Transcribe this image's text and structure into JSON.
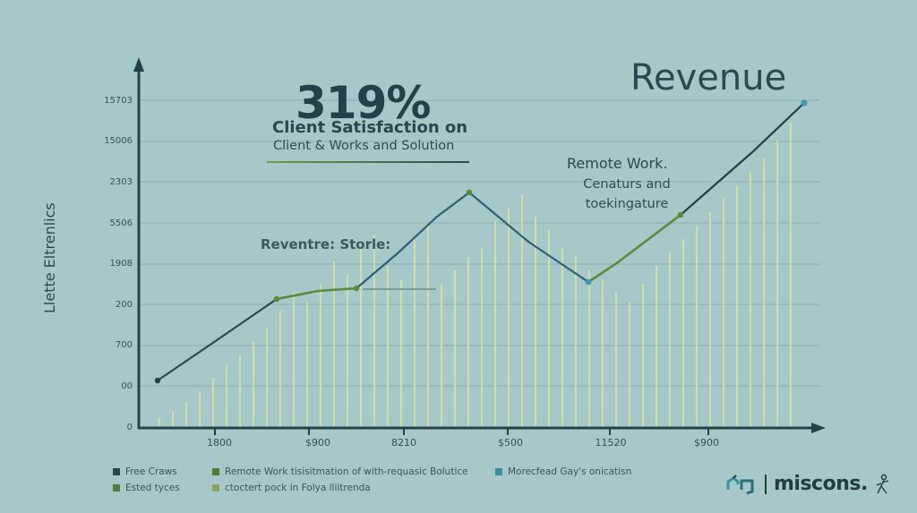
{
  "colors": {
    "background": "#a6c8c8",
    "axis": "#24414a",
    "gridline": "#8fb3b3",
    "line_dark": "#2c4a55",
    "line_teal": "#2e5f72",
    "line_green": "#5a8a3a",
    "bars": "#d7e6a8",
    "point_teal": "#3a9cb0"
  },
  "header": {
    "big_stat": "319%",
    "stat_title": "Client Satisfaction  on",
    "stat_subtitle": "Client & Works and Solution",
    "revenue_title": "Revenue"
  },
  "annotations": {
    "remote_title": "Remote Work.",
    "remote_line1": "Cenaturs and",
    "remote_line2": "toekingature",
    "stories_label": "Reventre: Storle:"
  },
  "legend": [
    {
      "label": "Free Craws",
      "color": "#2a454c"
    },
    {
      "label": "Remote Work tisisitmation of with-requasic Bolutice",
      "color": "#4e7a3a"
    },
    {
      "label": "Morecfead Gay's onicatisn",
      "color": "#3a8f9e"
    },
    {
      "label": "Ested tyces",
      "color": "#4e7a3a"
    },
    {
      "label": "ctoctert pock in Folya lliitrenda",
      "color": "#8fa068"
    }
  ],
  "brand": {
    "name": "miscons."
  },
  "chart_data": {
    "type": "line",
    "title": "Revenue",
    "subtitle": "319% Client Satisfaction on Client & Works and Solution",
    "xlabel": "",
    "ylabel": "Llette Eltrenlics",
    "y_ticks": [
      "0",
      "00",
      "700",
      "200",
      "1908",
      "5506",
      "2303",
      "15006",
      "15703"
    ],
    "x_ticks": [
      "1800",
      "$900",
      "8210",
      "$500",
      "11520",
      "$900"
    ],
    "grid": true,
    "legend_position": "bottom",
    "series": [
      {
        "name": "Revenue",
        "points_grid_units": [
          {
            "x": 0.2,
            "y": 1.2
          },
          {
            "x": 0.85,
            "y": 2.2
          },
          {
            "x": 1.45,
            "y": 3.15
          },
          {
            "x": 1.9,
            "y": 3.35
          },
          {
            "x": 2.3,
            "y": 3.4
          },
          {
            "x": 2.75,
            "y": 4.3
          },
          {
            "x": 3.1,
            "y": 5.2
          },
          {
            "x": 3.5,
            "y": 5.8
          },
          {
            "x": 4.1,
            "y": 4.6
          },
          {
            "x": 4.75,
            "y": 3.6
          },
          {
            "x": 5.05,
            "y": 4.1
          },
          {
            "x": 5.7,
            "y": 5.25
          },
          {
            "x": 6.45,
            "y": 6.8
          },
          {
            "x": 7.0,
            "y": 8.0
          }
        ]
      }
    ],
    "annotations": [
      "319%",
      "Client Satisfaction on",
      "Remote Work.",
      "Reventre: Storle:"
    ]
  }
}
